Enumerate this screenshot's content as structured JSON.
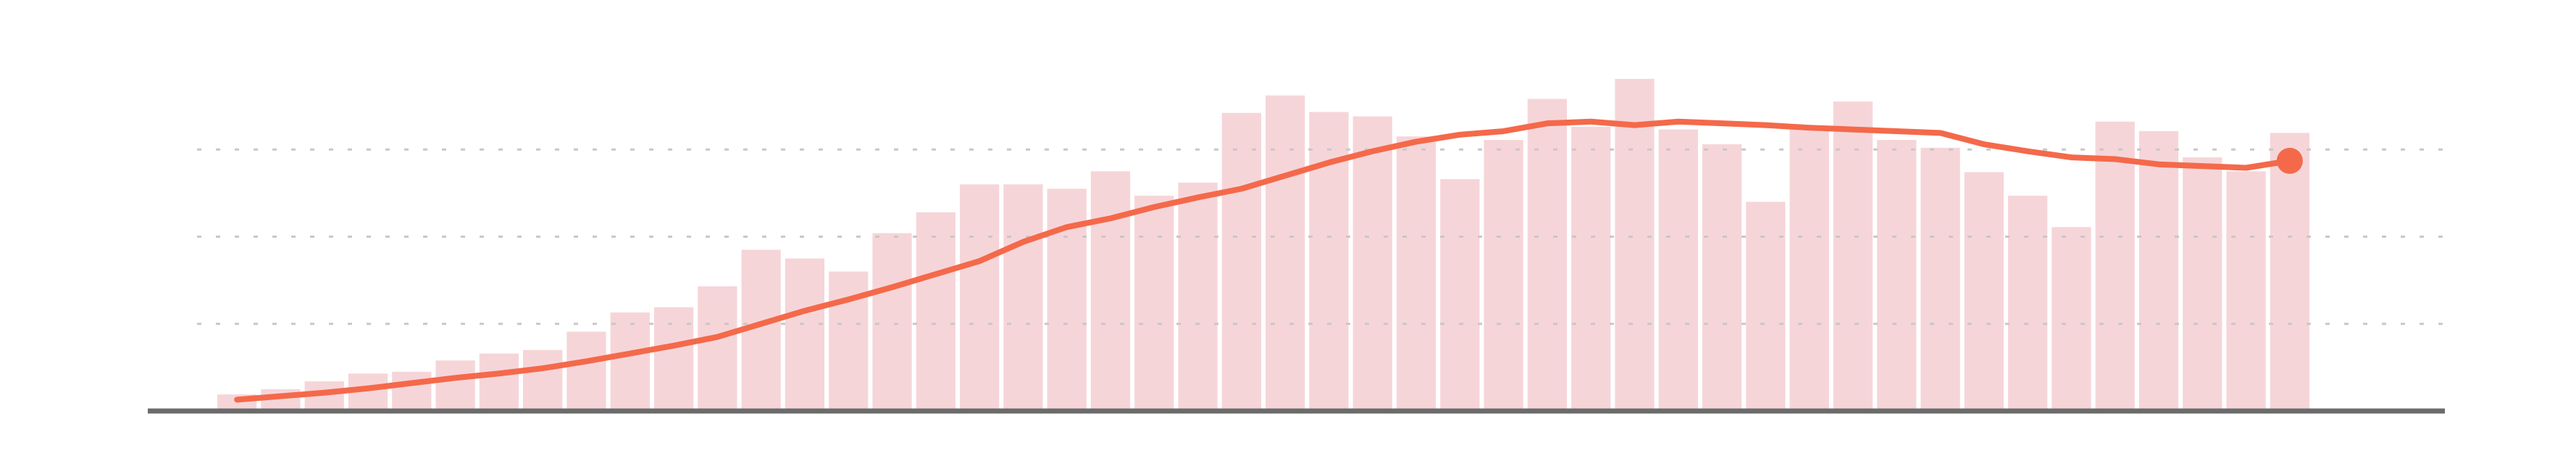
{
  "chart_data": {
    "type": "bar",
    "series": [
      {
        "type": "bar",
        "color": "#f6d5d9",
        "values": [
          19,
          25,
          34,
          43,
          45,
          58,
          66,
          70,
          91,
          113,
          119,
          143,
          185,
          175,
          160,
          204,
          228,
          260,
          260,
          255,
          275,
          247,
          262,
          342,
          362,
          343,
          338,
          315,
          266,
          311,
          358,
          326,
          381,
          323,
          306,
          240,
          323,
          355,
          311,
          302,
          274,
          247,
          211,
          332,
          321,
          291,
          275,
          319
        ]
      },
      {
        "type": "line",
        "color": "#f4694a",
        "end_marker": true,
        "values": [
          13,
          17,
          21,
          26,
          32,
          38,
          43,
          49,
          57,
          66,
          75,
          85,
          100,
          115,
          128,
          142,
          157,
          172,
          194,
          211,
          221,
          234,
          245,
          255,
          270,
          285,
          298,
          309,
          317,
          321,
          330,
          332,
          328,
          332,
          330,
          328,
          325,
          323,
          321,
          319,
          306,
          298,
          291,
          289,
          283,
          281,
          279,
          287
        ]
      }
    ],
    "ylim": [
      0,
      400
    ],
    "yticks": [
      0,
      100,
      200,
      300
    ],
    "grid": true
  }
}
